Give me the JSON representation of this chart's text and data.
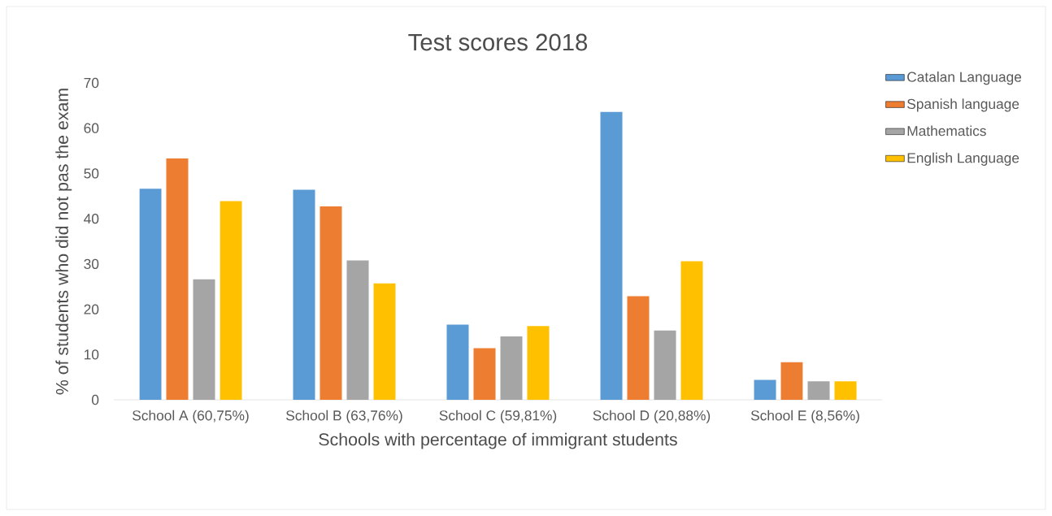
{
  "chart_data": {
    "type": "bar",
    "title": "Test scores 2018",
    "xlabel": "Schools with percentage of immigrant students",
    "ylabel": "% of students who did not pas the exam",
    "categories": [
      "School A (60,75%)",
      "School B (63,76%)",
      "School C (59,81%)",
      "School D (20,88%)",
      "School E (8,56%)"
    ],
    "series": [
      {
        "name": "Catalan Language",
        "color": "#5b9bd5",
        "values": [
          46.6,
          46.4,
          16.6,
          63.6,
          4.4
        ]
      },
      {
        "name": "Spanish language",
        "color": "#ed7d31",
        "values": [
          53.3,
          42.7,
          11.4,
          22.9,
          8.3
        ]
      },
      {
        "name": "Mathematics",
        "color": "#a5a5a5",
        "values": [
          26.6,
          30.8,
          14.0,
          15.3,
          4.1
        ]
      },
      {
        "name": "English Language",
        "color": "#ffc000",
        "values": [
          43.9,
          25.7,
          16.3,
          30.6,
          4.1
        ]
      }
    ],
    "ylim": [
      0,
      70
    ],
    "yticks": [
      0,
      10,
      20,
      30,
      40,
      50,
      60,
      70
    ],
    "grid": false,
    "legend": "top right"
  }
}
